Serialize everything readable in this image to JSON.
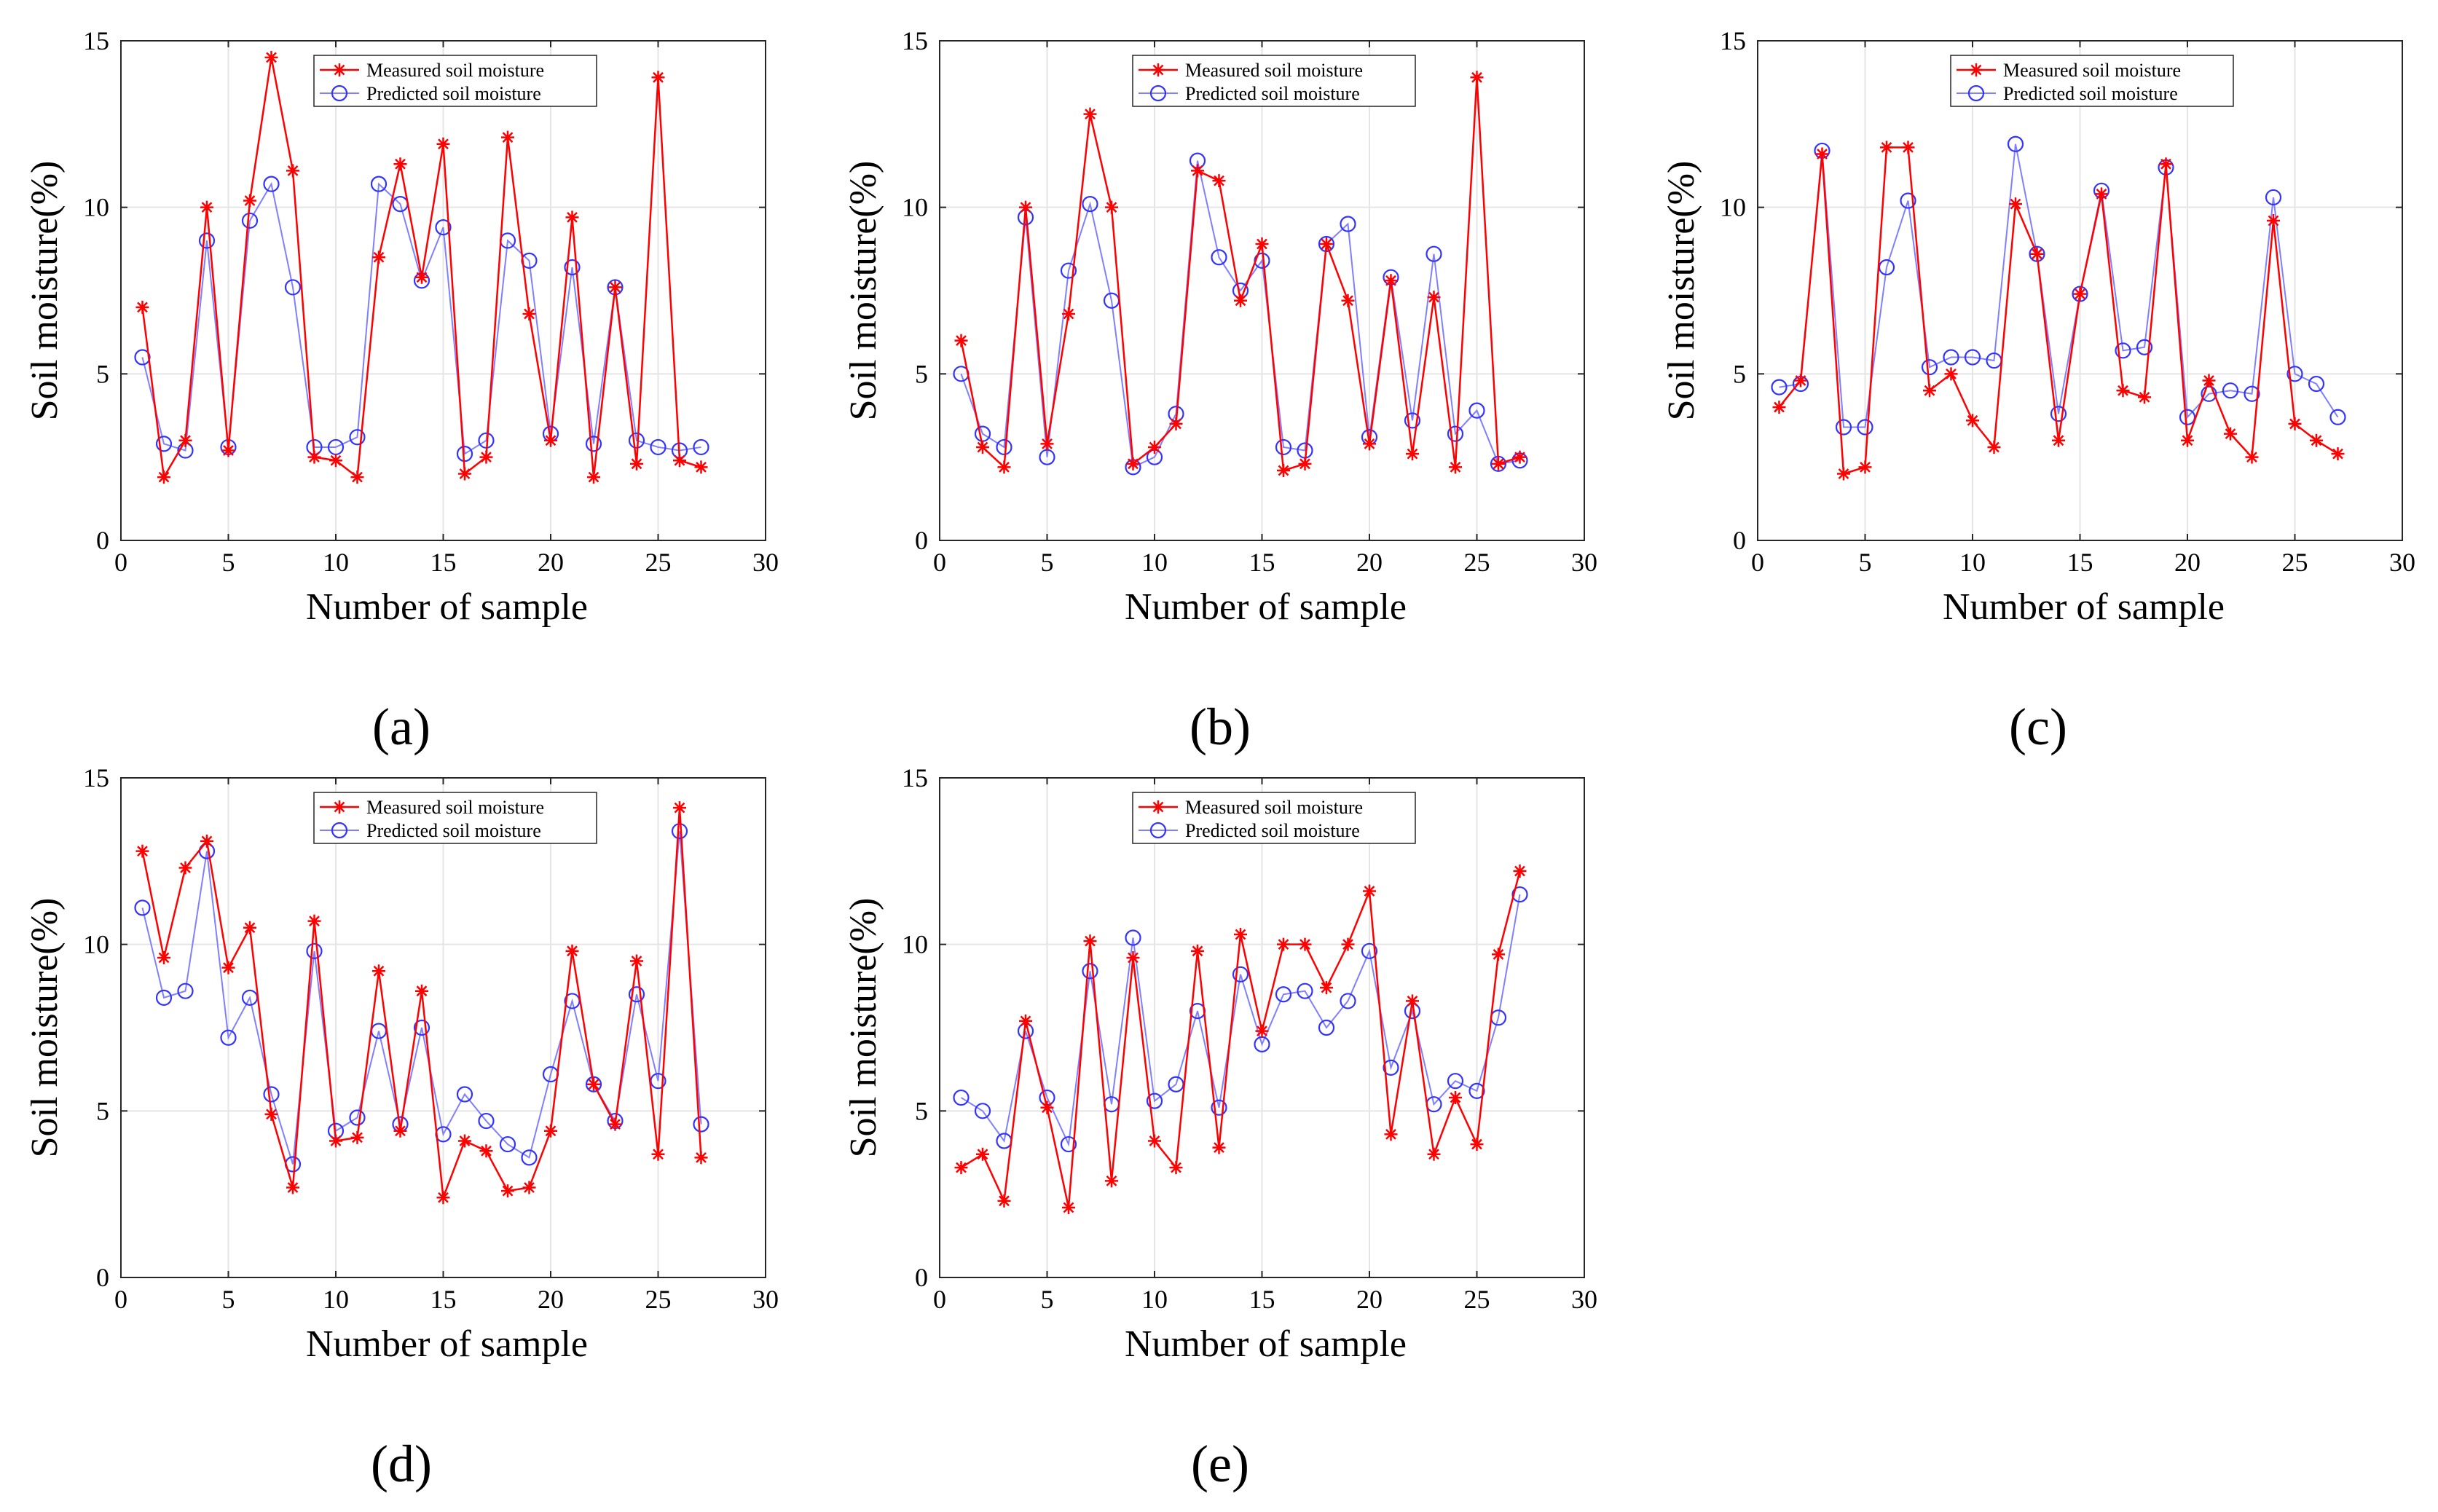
{
  "figure": {
    "legend_measured": "Measured soil moisture",
    "legend_predicted": "Predicted soil moisture",
    "colors": {
      "measured": "#ff0000",
      "predicted": "#8080ff",
      "predicted_marker": "#3333ff",
      "grid": "#e5e5e5",
      "axis": "#262626"
    }
  },
  "chart_data": [
    {
      "panel_label": "(a)",
      "type": "line",
      "xlabel": "Number of sample",
      "ylabel": "Soil moisture(%)",
      "xlim": [
        0,
        30
      ],
      "ylim": [
        0,
        15
      ],
      "xticks": [
        0,
        5,
        10,
        15,
        20,
        25,
        30
      ],
      "yticks": [
        0,
        5,
        10,
        15
      ],
      "grid": true,
      "legend": "top-center",
      "x": [
        1,
        2,
        3,
        4,
        5,
        6,
        7,
        8,
        9,
        10,
        11,
        12,
        13,
        14,
        15,
        16,
        17,
        18,
        19,
        20,
        21,
        22,
        23,
        24,
        25,
        26,
        27
      ],
      "series": [
        {
          "name": "Measured soil moisture",
          "marker": "asterisk",
          "values": [
            7.0,
            1.9,
            3.0,
            10.0,
            2.7,
            10.2,
            14.5,
            11.1,
            2.5,
            2.4,
            1.9,
            8.5,
            11.3,
            7.9,
            11.9,
            2.0,
            2.5,
            12.1,
            6.8,
            3.0,
            9.7,
            1.9,
            7.6,
            2.3,
            13.9,
            2.4,
            2.2
          ]
        },
        {
          "name": "Predicted soil moisture",
          "marker": "circle",
          "values": [
            5.5,
            2.9,
            2.7,
            9.0,
            2.8,
            9.6,
            10.7,
            7.6,
            2.8,
            2.8,
            3.1,
            10.7,
            10.1,
            7.8,
            9.4,
            2.6,
            3.0,
            9.0,
            8.4,
            3.2,
            8.2,
            2.9,
            7.6,
            3.0,
            2.8,
            2.7,
            2.8
          ]
        }
      ]
    },
    {
      "panel_label": "(b)",
      "type": "line",
      "xlabel": "Number of sample",
      "ylabel": "Soil moisture(%)",
      "xlim": [
        0,
        30
      ],
      "ylim": [
        0,
        15
      ],
      "xticks": [
        0,
        5,
        10,
        15,
        20,
        25,
        30
      ],
      "yticks": [
        0,
        5,
        10,
        15
      ],
      "grid": true,
      "legend": "top-center",
      "x": [
        1,
        2,
        3,
        4,
        5,
        6,
        7,
        8,
        9,
        10,
        11,
        12,
        13,
        14,
        15,
        16,
        17,
        18,
        19,
        20,
        21,
        22,
        23,
        24,
        25,
        26,
        27
      ],
      "series": [
        {
          "name": "Measured soil moisture",
          "marker": "asterisk",
          "values": [
            6.0,
            2.8,
            2.2,
            10.0,
            2.9,
            6.8,
            12.8,
            10.0,
            2.3,
            2.8,
            3.5,
            11.1,
            10.8,
            7.2,
            8.9,
            2.1,
            2.3,
            8.9,
            7.2,
            2.9,
            7.8,
            2.6,
            7.3,
            2.2,
            13.9,
            2.3,
            2.5
          ]
        },
        {
          "name": "Predicted soil moisture",
          "marker": "circle",
          "values": [
            5.0,
            3.2,
            2.8,
            9.7,
            2.5,
            8.1,
            10.1,
            7.2,
            2.2,
            2.5,
            3.8,
            11.4,
            8.5,
            7.5,
            8.4,
            2.8,
            2.7,
            8.9,
            9.5,
            3.1,
            7.9,
            3.6,
            8.6,
            3.2,
            3.9,
            2.3,
            2.4
          ]
        }
      ]
    },
    {
      "panel_label": "(c)",
      "type": "line",
      "xlabel": "Number of sample",
      "ylabel": "Soil moisture(%)",
      "xlim": [
        0,
        30
      ],
      "ylim": [
        0,
        15
      ],
      "xticks": [
        0,
        5,
        10,
        15,
        20,
        25,
        30
      ],
      "yticks": [
        0,
        5,
        10,
        15
      ],
      "grid": true,
      "legend": "top-center",
      "x": [
        1,
        2,
        3,
        4,
        5,
        6,
        7,
        8,
        9,
        10,
        11,
        12,
        13,
        14,
        15,
        16,
        17,
        18,
        19,
        20,
        21,
        22,
        23,
        24,
        25,
        26,
        27
      ],
      "series": [
        {
          "name": "Measured soil moisture",
          "marker": "asterisk",
          "values": [
            4.0,
            4.8,
            11.6,
            2.0,
            2.2,
            11.8,
            11.8,
            4.5,
            5.0,
            3.6,
            2.8,
            10.1,
            8.6,
            3.0,
            7.4,
            10.4,
            4.5,
            4.3,
            11.3,
            3.0,
            4.8,
            3.2,
            2.5,
            9.6,
            3.5,
            3.0,
            2.6
          ]
        },
        {
          "name": "Predicted soil moisture",
          "marker": "circle",
          "values": [
            4.6,
            4.7,
            11.7,
            3.4,
            3.4,
            8.2,
            10.2,
            5.2,
            5.5,
            5.5,
            5.4,
            11.9,
            8.6,
            3.8,
            7.4,
            10.5,
            5.7,
            5.8,
            11.2,
            3.7,
            4.4,
            4.5,
            4.4,
            10.3,
            5.0,
            4.7,
            3.7
          ]
        }
      ]
    },
    {
      "panel_label": "(d)",
      "type": "line",
      "xlabel": "Number of sample",
      "ylabel": "Soil moisture(%)",
      "xlim": [
        0,
        30
      ],
      "ylim": [
        0,
        15
      ],
      "xticks": [
        0,
        5,
        10,
        15,
        20,
        25,
        30
      ],
      "yticks": [
        0,
        5,
        10,
        15
      ],
      "grid": true,
      "legend": "top-center",
      "x": [
        1,
        2,
        3,
        4,
        5,
        6,
        7,
        8,
        9,
        10,
        11,
        12,
        13,
        14,
        15,
        16,
        17,
        18,
        19,
        20,
        21,
        22,
        23,
        24,
        25,
        26,
        27
      ],
      "series": [
        {
          "name": "Measured soil moisture",
          "marker": "asterisk",
          "values": [
            12.8,
            9.6,
            12.3,
            13.1,
            9.3,
            10.5,
            4.9,
            2.7,
            10.7,
            4.1,
            4.2,
            9.2,
            4.4,
            8.6,
            2.4,
            4.1,
            3.8,
            2.6,
            2.7,
            4.4,
            9.8,
            5.8,
            4.6,
            9.5,
            3.7,
            14.1,
            3.6
          ]
        },
        {
          "name": "Predicted soil moisture",
          "marker": "circle",
          "values": [
            11.1,
            8.4,
            8.6,
            12.8,
            7.2,
            8.4,
            5.5,
            3.4,
            9.8,
            4.4,
            4.8,
            7.4,
            4.6,
            7.5,
            4.3,
            5.5,
            4.7,
            4.0,
            3.6,
            6.1,
            8.3,
            5.8,
            4.7,
            8.5,
            5.9,
            13.4,
            4.6
          ]
        }
      ]
    },
    {
      "panel_label": "(e)",
      "type": "line",
      "xlabel": "Number of sample",
      "ylabel": "Soil moisture(%)",
      "xlim": [
        0,
        30
      ],
      "ylim": [
        0,
        15
      ],
      "xticks": [
        0,
        5,
        10,
        15,
        20,
        25,
        30
      ],
      "yticks": [
        0,
        5,
        10,
        15
      ],
      "grid": true,
      "legend": "top-center",
      "x": [
        1,
        2,
        3,
        4,
        5,
        6,
        7,
        8,
        9,
        10,
        11,
        12,
        13,
        14,
        15,
        16,
        17,
        18,
        19,
        20,
        21,
        22,
        23,
        24,
        25,
        26,
        27
      ],
      "series": [
        {
          "name": "Measured soil moisture",
          "marker": "asterisk",
          "values": [
            3.3,
            3.7,
            2.3,
            7.7,
            5.1,
            2.1,
            10.1,
            2.9,
            9.6,
            4.1,
            3.3,
            9.8,
            3.9,
            10.3,
            7.4,
            10.0,
            10.0,
            8.7,
            10.0,
            11.6,
            4.3,
            8.3,
            3.7,
            5.4,
            4.0,
            9.7,
            12.2
          ]
        },
        {
          "name": "Predicted soil moisture",
          "marker": "circle",
          "values": [
            5.4,
            5.0,
            4.1,
            7.4,
            5.4,
            4.0,
            9.2,
            5.2,
            10.2,
            5.3,
            5.8,
            8.0,
            5.1,
            9.1,
            7.0,
            8.5,
            8.6,
            7.5,
            8.3,
            9.8,
            6.3,
            8.0,
            5.2,
            5.9,
            5.6,
            7.8,
            11.5
          ]
        }
      ]
    }
  ]
}
